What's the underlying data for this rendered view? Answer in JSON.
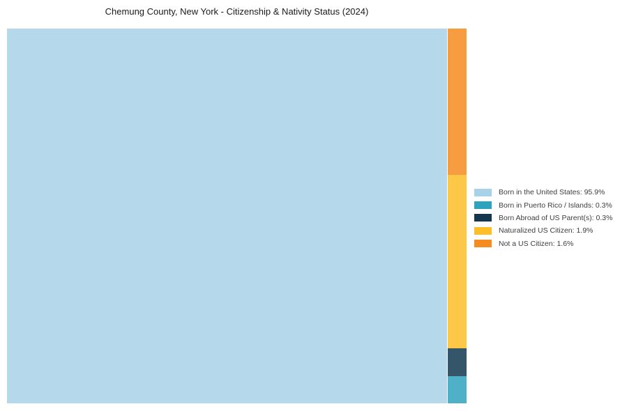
{
  "title": "Chemung County, New York - Citizenship & Nativity Status (2024)",
  "chart_data": {
    "type": "treemap",
    "title": "Chemung County, New York - Citizenship & Nativity Status (2024)",
    "unit": "percent",
    "series": [
      {
        "name": "Born in the United States",
        "value": 95.9,
        "color": "#A8D2E7"
      },
      {
        "name": "Not a US Citizen",
        "value": 1.6,
        "color": "#F68B1F"
      },
      {
        "name": "Naturalized US Citizen",
        "value": 1.9,
        "color": "#FDBE27"
      },
      {
        "name": "Born Abroad of US Parent(s)",
        "value": 0.3,
        "color": "#12374F"
      },
      {
        "name": "Born in Puerto Rico / Islands",
        "value": 0.3,
        "color": "#2FA3BE"
      }
    ],
    "minor_total": 4.1,
    "layout": {
      "main_segment": "Born in the United States",
      "main_segment_position": "left",
      "minor_column_position": "right",
      "minor_column_order_top_to_bottom": [
        "Not a US Citizen",
        "Naturalized US Citizen",
        "Born Abroad of US Parent(s)",
        "Born in Puerto Rico / Islands"
      ],
      "legend_position": "right-middle",
      "fill_opacity": 0.85,
      "grid": false
    }
  },
  "legend": {
    "items": [
      {
        "label": "Born in the United States: 95.9%",
        "color": "#A8D2E7"
      },
      {
        "label": "Born in Puerto Rico / Islands: 0.3%",
        "color": "#2FA3BE"
      },
      {
        "label": "Born Abroad of US Parent(s): 0.3%",
        "color": "#12374F"
      },
      {
        "label": "Naturalized US Citizen: 1.9%",
        "color": "#FDBE27"
      },
      {
        "label": "Not a US Citizen: 1.6%",
        "color": "#F68B1F"
      }
    ]
  }
}
